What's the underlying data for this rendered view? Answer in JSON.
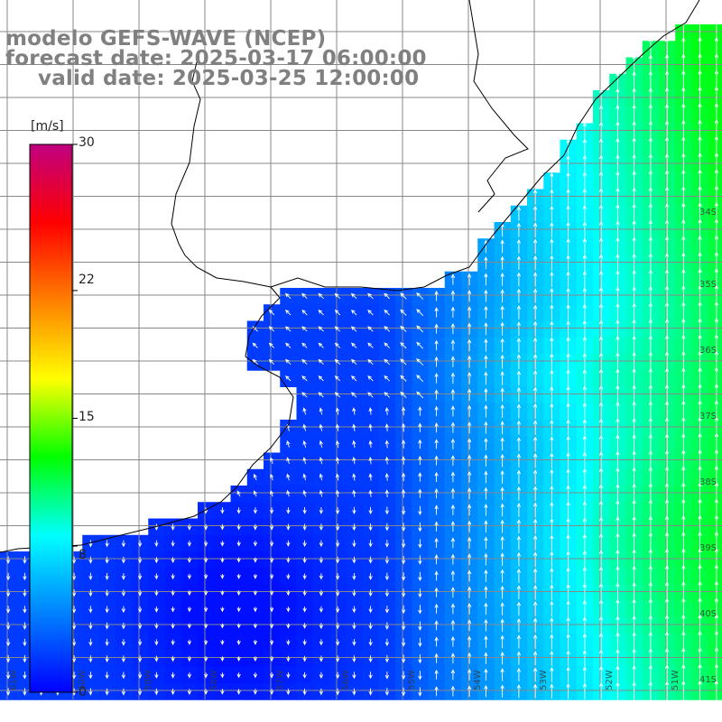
{
  "title": {
    "line1": "modelo GEFS-WAVE (NCEP)",
    "line2": "forecast date: 2025-03-17 06:00:00",
    "line3": "valid date: 2025-03-25 12:00:00"
  },
  "colorbar": {
    "unit": "[m/s]",
    "ticks": [
      "30",
      "22",
      "15",
      "8",
      "0"
    ],
    "tick_values": [
      30,
      22,
      15,
      8,
      0
    ],
    "range": [
      0,
      30
    ],
    "colors": [
      "#0000ff",
      "#0080ff",
      "#00ffff",
      "#00ff00",
      "#ffff00",
      "#ff8000",
      "#ff0000",
      "#c00080"
    ]
  },
  "map": {
    "field": "wind speed",
    "latitude_labels": [
      "34S",
      "35S",
      "36S",
      "37S",
      "38S",
      "39S",
      "40S",
      "41S"
    ],
    "longitude_labels": [
      "61W",
      "60W",
      "59W",
      "58W",
      "57W",
      "56W",
      "55W",
      "54W",
      "53W",
      "52W",
      "51W"
    ],
    "land_color": "#ffffff",
    "grid_color": "#888888"
  }
}
